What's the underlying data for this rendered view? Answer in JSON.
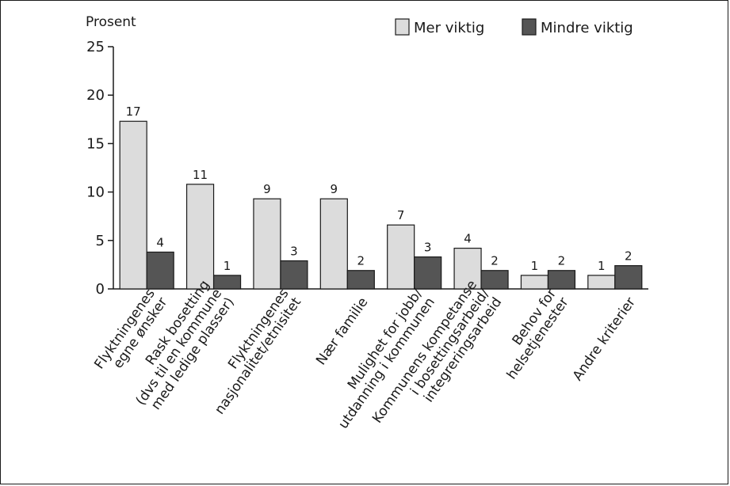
{
  "chart_data": {
    "type": "bar",
    "ylabel": "Prosent",
    "ylim": [
      0,
      25
    ],
    "yticks": [
      "0",
      "5",
      "10",
      "15",
      "20",
      "25"
    ],
    "categories": [
      [
        "Flyktningenes",
        "egne ønsker"
      ],
      [
        "Rask bosetting",
        "(dvs til en kommune",
        "med ledige plasser)"
      ],
      [
        "Flyktningenes",
        "nasjonalitet/etnisitet"
      ],
      [
        "Nær familie"
      ],
      [
        "Mulighet for jobb/",
        "utdanning i kommunen"
      ],
      [
        "Kommunens kompetanse",
        "i bosettingsarbeid/",
        "integreringsarbeid"
      ],
      [
        "Behov for",
        "helsetjenester"
      ],
      [
        "Andre kriterier"
      ]
    ],
    "series": [
      {
        "name": "Mer viktig",
        "color": "#dcdcdc",
        "values": [
          17.3,
          10.8,
          9.3,
          9.3,
          6.6,
          4.2,
          1.4,
          1.4
        ],
        "labels": [
          "17",
          "11",
          "9",
          "9",
          "7",
          "4",
          "1",
          "1"
        ]
      },
      {
        "name": "Mindre viktig",
        "color": "#555555",
        "values": [
          3.8,
          1.4,
          2.9,
          1.9,
          3.3,
          1.9,
          1.9,
          2.4
        ],
        "labels": [
          "4",
          "1",
          "3",
          "2",
          "3",
          "2",
          "2",
          "2"
        ]
      }
    ],
    "legend_position": "top-right",
    "grid": false
  }
}
